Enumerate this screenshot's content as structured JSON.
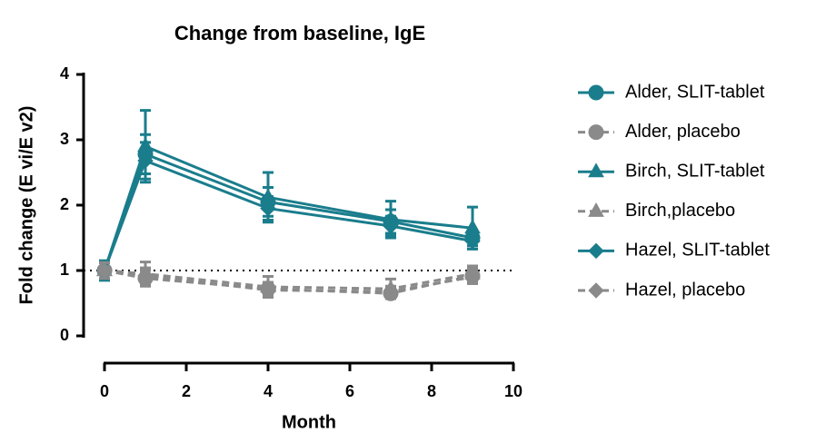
{
  "chart_data": {
    "type": "line",
    "title": "Change from baseline, IgE",
    "xlabel": "Month",
    "ylabel": "Fold change (E vi/E v2)",
    "x": [
      0,
      1,
      4,
      7,
      9
    ],
    "xlim": [
      0,
      10
    ],
    "xticks": [
      0,
      2,
      4,
      6,
      8,
      10
    ],
    "ylim": [
      0,
      4
    ],
    "yticks": [
      0,
      1,
      2,
      3,
      4
    ],
    "reference_line": 1,
    "legend": "right",
    "series": [
      {
        "name": "Alder, SLIT-tablet",
        "color": "#1a7d8c",
        "marker": "circle",
        "linestyle": "solid",
        "values": [
          1.0,
          2.78,
          2.05,
          1.75,
          1.5
        ],
        "errors": [
          0.12,
          0.3,
          0.22,
          0.18,
          0.12
        ]
      },
      {
        "name": "Alder, placebo",
        "color": "#8a8a8a",
        "marker": "circle",
        "linestyle": "dashed",
        "values": [
          1.0,
          0.88,
          0.72,
          0.65,
          0.92
        ],
        "errors": [
          0.15,
          0.12,
          0.1,
          0.08,
          0.12
        ]
      },
      {
        "name": "Birch, SLIT-tablet",
        "color": "#1a7d8c",
        "marker": "triangle",
        "linestyle": "solid",
        "values": [
          1.0,
          2.9,
          2.12,
          1.78,
          1.65
        ],
        "errors": [
          0.15,
          0.55,
          0.38,
          0.28,
          0.32
        ]
      },
      {
        "name": "Birch,placebo",
        "color": "#8a8a8a",
        "marker": "triangle",
        "linestyle": "dashed",
        "values": [
          1.0,
          0.95,
          0.75,
          0.72,
          0.95
        ],
        "errors": [
          0.12,
          0.18,
          0.16,
          0.15,
          0.12
        ]
      },
      {
        "name": "Hazel, SLIT-tablet",
        "color": "#1a7d8c",
        "marker": "diamond",
        "linestyle": "solid",
        "values": [
          1.0,
          2.68,
          1.95,
          1.68,
          1.45
        ],
        "errors": [
          0.12,
          0.28,
          0.18,
          0.15,
          0.12
        ]
      },
      {
        "name": "Hazel, placebo",
        "color": "#8a8a8a",
        "marker": "diamond",
        "linestyle": "dashed",
        "values": [
          1.0,
          0.92,
          0.7,
          0.68,
          0.9
        ],
        "errors": [
          0.12,
          0.12,
          0.08,
          0.08,
          0.1
        ]
      }
    ]
  }
}
